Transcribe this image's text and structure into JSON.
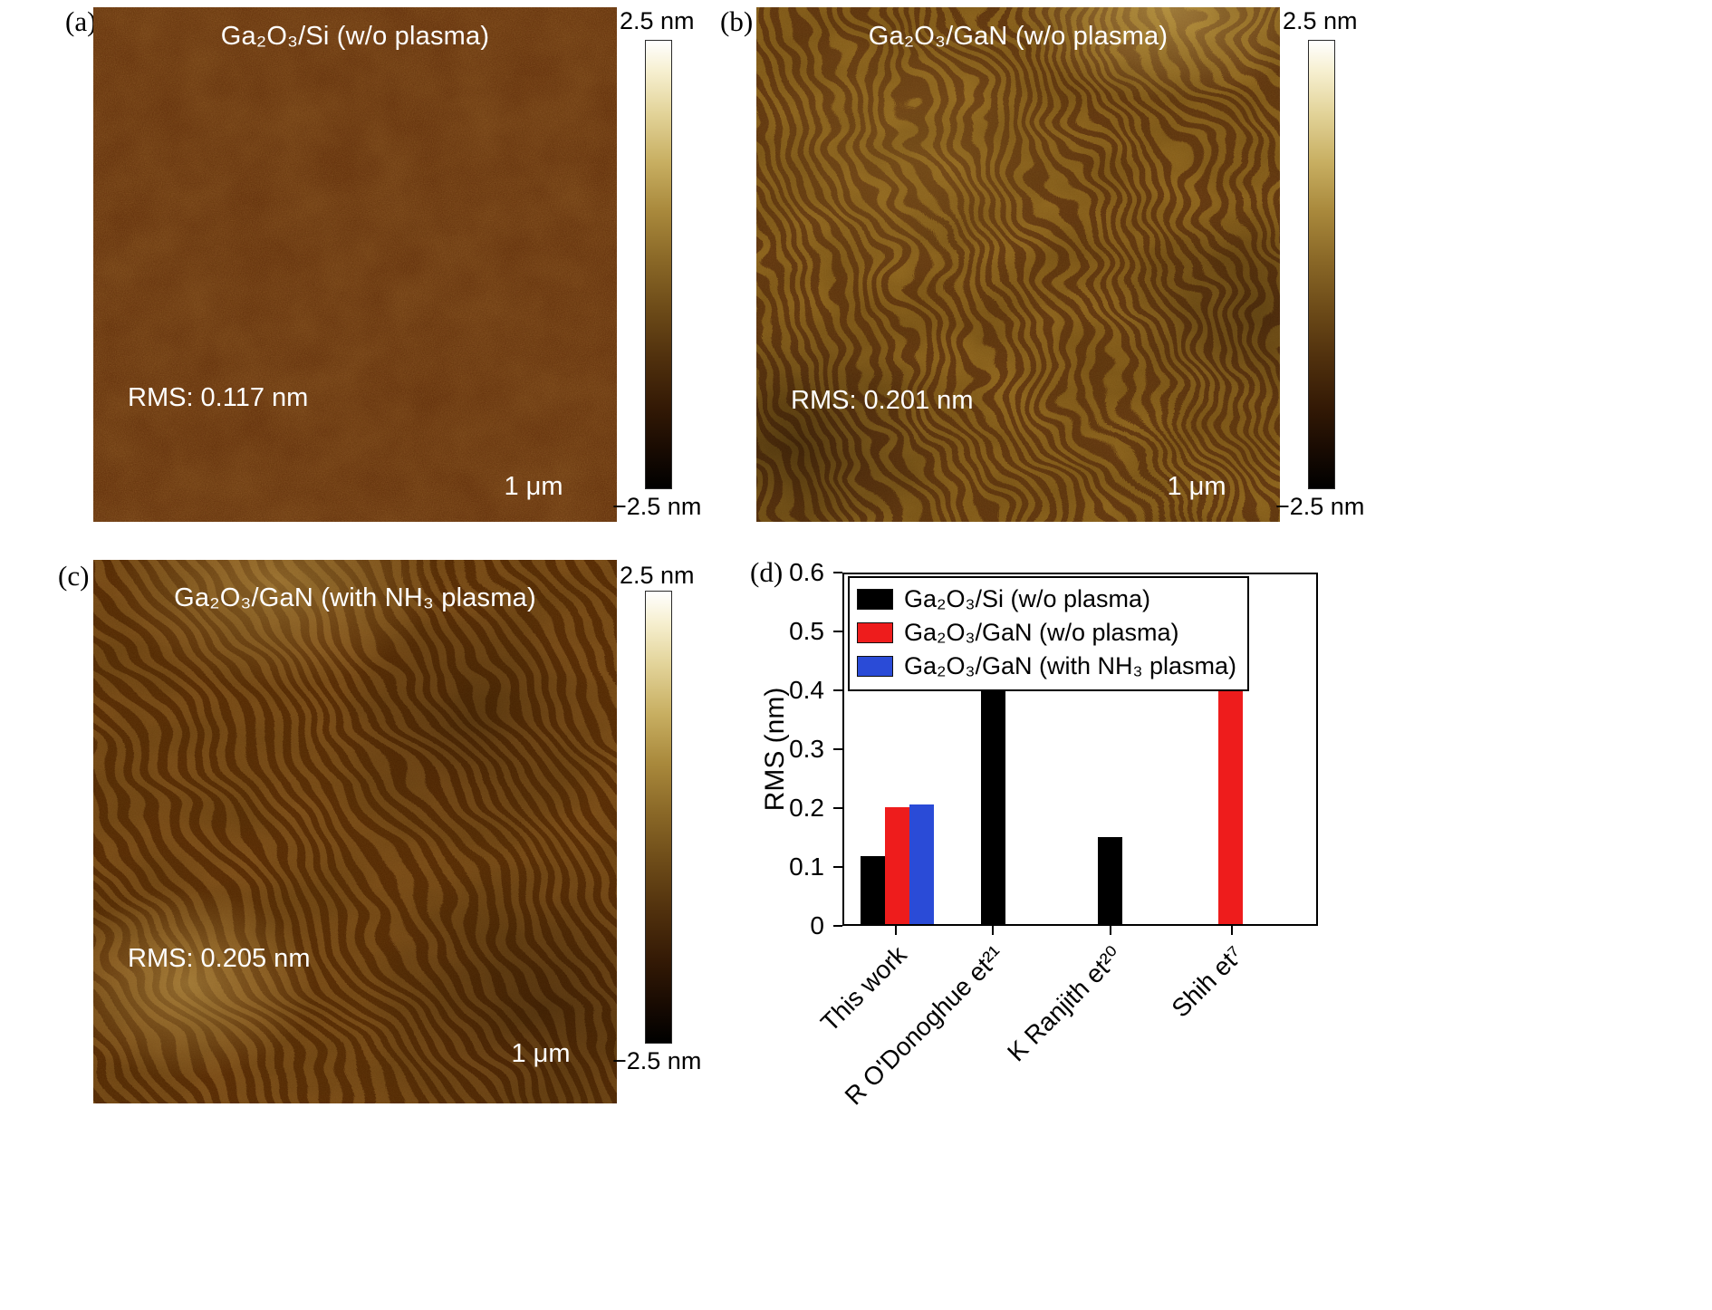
{
  "figure": {
    "panels": [
      {
        "tag": "(a)",
        "title": "Ga₂O₃/Si (w/o plasma)",
        "rms": "RMS: 0.117 nm",
        "scalebar_label": "1 μm",
        "colorbar_max": "2.5 nm",
        "colorbar_min": "−2.5 nm"
      },
      {
        "tag": "(b)",
        "title": "Ga₂O₃/GaN (w/o plasma)",
        "rms": "RMS: 0.201 nm",
        "scalebar_label": "1 μm",
        "colorbar_max": "2.5 nm",
        "colorbar_min": "−2.5 nm"
      },
      {
        "tag": "(c)",
        "title": "Ga₂O₃/GaN (with NH₃ plasma)",
        "rms": "RMS: 0.205 nm",
        "scalebar_label": "1 μm",
        "colorbar_max": "2.5 nm",
        "colorbar_min": "−2.5 nm"
      },
      {
        "tag": "(d)"
      }
    ]
  },
  "chart_data": {
    "type": "bar",
    "title": "",
    "xlabel": "",
    "ylabel": "RMS (nm)",
    "ylim": [
      0,
      0.6
    ],
    "yticks": [
      0,
      0.1,
      0.2,
      0.3,
      0.4,
      0.5,
      0.6
    ],
    "grid": false,
    "legend_position": "upper left",
    "categories": [
      "This work",
      "R O'Donoghue et²¹",
      "K Ranjith et²⁰",
      "Shih et⁷"
    ],
    "series": [
      {
        "name": "Ga₂O₃/Si (w/o plasma)",
        "color": "#000000",
        "values": [
          0.117,
          0.44,
          0.15,
          null
        ]
      },
      {
        "name": "Ga₂O₃/GaN (w/o plasma)",
        "color": "#ee1c1c",
        "values": [
          0.201,
          null,
          null,
          0.51
        ]
      },
      {
        "name": "Ga₂O₃/GaN (with NH₃ plasma)",
        "color": "#2a4bd7",
        "values": [
          0.205,
          null,
          null,
          null
        ]
      }
    ],
    "group_centers_pct": [
      11.2,
      31.6,
      56.4,
      81.9
    ],
    "bar_width_pct": 5.2
  }
}
